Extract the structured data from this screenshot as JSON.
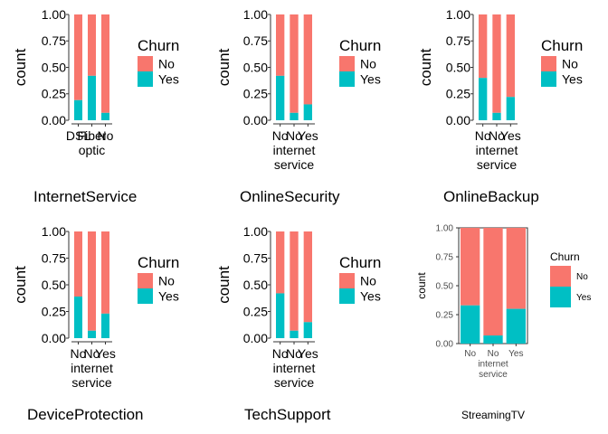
{
  "colors": {
    "no": "#F8766D",
    "yes": "#00BFC4",
    "axis": "#333333",
    "text": "#000000"
  },
  "chart_data": [
    {
      "type": "bar",
      "stacked": "fill",
      "xlabel": "InternetService",
      "ylabel": "count",
      "categories": [
        "DSL",
        "Fiber optic",
        "No"
      ],
      "category_lines": [
        [
          "DSL"
        ],
        [
          "Fiber",
          "optic"
        ],
        [
          "No"
        ]
      ],
      "ylim": [
        0,
        1
      ],
      "yticks": [
        "0.00",
        "0.25",
        "0.50",
        "0.75",
        "1.00"
      ],
      "legend": {
        "title": "Churn",
        "placement": "right"
      },
      "series": [
        {
          "name": "No",
          "values": [
            0.81,
            0.58,
            0.93
          ]
        },
        {
          "name": "Yes",
          "values": [
            0.19,
            0.42,
            0.07
          ]
        }
      ]
    },
    {
      "type": "bar",
      "stacked": "fill",
      "xlabel": "OnlineSecurity",
      "ylabel": "count",
      "categories": [
        "No",
        "No internet service",
        "Yes"
      ],
      "category_lines": [
        [
          "No"
        ],
        [
          "No",
          "internet",
          "service"
        ],
        [
          "Yes"
        ]
      ],
      "ylim": [
        0,
        1
      ],
      "yticks": [
        "0.00",
        "0.25",
        "0.50",
        "0.75",
        "1.00"
      ],
      "legend": {
        "title": "Churn",
        "placement": "right"
      },
      "series": [
        {
          "name": "No",
          "values": [
            0.58,
            0.93,
            0.85
          ]
        },
        {
          "name": "Yes",
          "values": [
            0.42,
            0.07,
            0.15
          ]
        }
      ]
    },
    {
      "type": "bar",
      "stacked": "fill",
      "xlabel": "OnlineBackup",
      "ylabel": "count",
      "categories": [
        "No",
        "No internet service",
        "Yes"
      ],
      "category_lines": [
        [
          "No"
        ],
        [
          "No",
          "internet",
          "service"
        ],
        [
          "Yes"
        ]
      ],
      "ylim": [
        0,
        1
      ],
      "yticks": [
        "0.00",
        "0.25",
        "0.50",
        "0.75",
        "1.00"
      ],
      "legend": {
        "title": "Churn",
        "placement": "right"
      },
      "series": [
        {
          "name": "No",
          "values": [
            0.6,
            0.93,
            0.78
          ]
        },
        {
          "name": "Yes",
          "values": [
            0.4,
            0.07,
            0.22
          ]
        }
      ]
    },
    {
      "type": "bar",
      "stacked": "fill",
      "xlabel": "DeviceProtection",
      "ylabel": "count",
      "categories": [
        "No",
        "No internet service",
        "Yes"
      ],
      "category_lines": [
        [
          "No"
        ],
        [
          "No",
          "internet",
          "service"
        ],
        [
          "Yes"
        ]
      ],
      "ylim": [
        0,
        1
      ],
      "yticks": [
        "0.00",
        "0.25",
        "0.50",
        "0.75",
        "1.00"
      ],
      "legend": {
        "title": "Churn",
        "placement": "right"
      },
      "series": [
        {
          "name": "No",
          "values": [
            0.61,
            0.93,
            0.77
          ]
        },
        {
          "name": "Yes",
          "values": [
            0.39,
            0.07,
            0.23
          ]
        }
      ]
    },
    {
      "type": "bar",
      "stacked": "fill",
      "xlabel": "TechSupport",
      "ylabel": "count",
      "categories": [
        "No",
        "No internet service",
        "Yes"
      ],
      "category_lines": [
        [
          "No"
        ],
        [
          "No",
          "internet",
          "service"
        ],
        [
          "Yes"
        ]
      ],
      "ylim": [
        0,
        1
      ],
      "yticks": [
        "0.00",
        "0.25",
        "0.50",
        "0.75",
        "1.00"
      ],
      "legend": {
        "title": "Churn",
        "placement": "right"
      },
      "series": [
        {
          "name": "No",
          "values": [
            0.58,
            0.93,
            0.85
          ]
        },
        {
          "name": "Yes",
          "values": [
            0.42,
            0.07,
            0.15
          ]
        }
      ]
    },
    {
      "type": "bar",
      "stacked": "fill",
      "xlabel": "StreamingTV",
      "ylabel": "count",
      "categories": [
        "No",
        "No internet service",
        "Yes"
      ],
      "category_lines": [
        [
          "No"
        ],
        [
          "No",
          "internet",
          "service"
        ],
        [
          "Yes"
        ]
      ],
      "ylim": [
        0,
        1
      ],
      "yticks": [
        "0.00",
        "0.25",
        "0.50",
        "0.75",
        "1.00"
      ],
      "legend": {
        "title": "Churn",
        "placement": "right"
      },
      "series": [
        {
          "name": "No",
          "values": [
            0.67,
            0.93,
            0.7
          ]
        },
        {
          "name": "Yes",
          "values": [
            0.33,
            0.07,
            0.3
          ]
        }
      ]
    }
  ]
}
